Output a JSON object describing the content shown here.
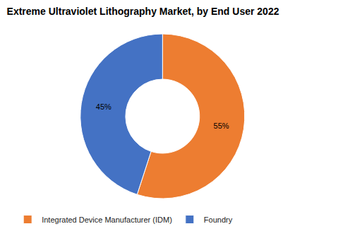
{
  "chart_data": {
    "type": "pie",
    "title": "Extreme Ultraviolet Lithography Market, by End User 2022",
    "categories": [
      "Integrated Device Manufacturer (IDM)",
      "Foundry"
    ],
    "values": [
      55,
      45
    ],
    "value_labels": [
      "55%",
      "45%"
    ],
    "colors": [
      "#ed7d31",
      "#4472c4"
    ],
    "data_labels": true,
    "legend": "bottom"
  }
}
